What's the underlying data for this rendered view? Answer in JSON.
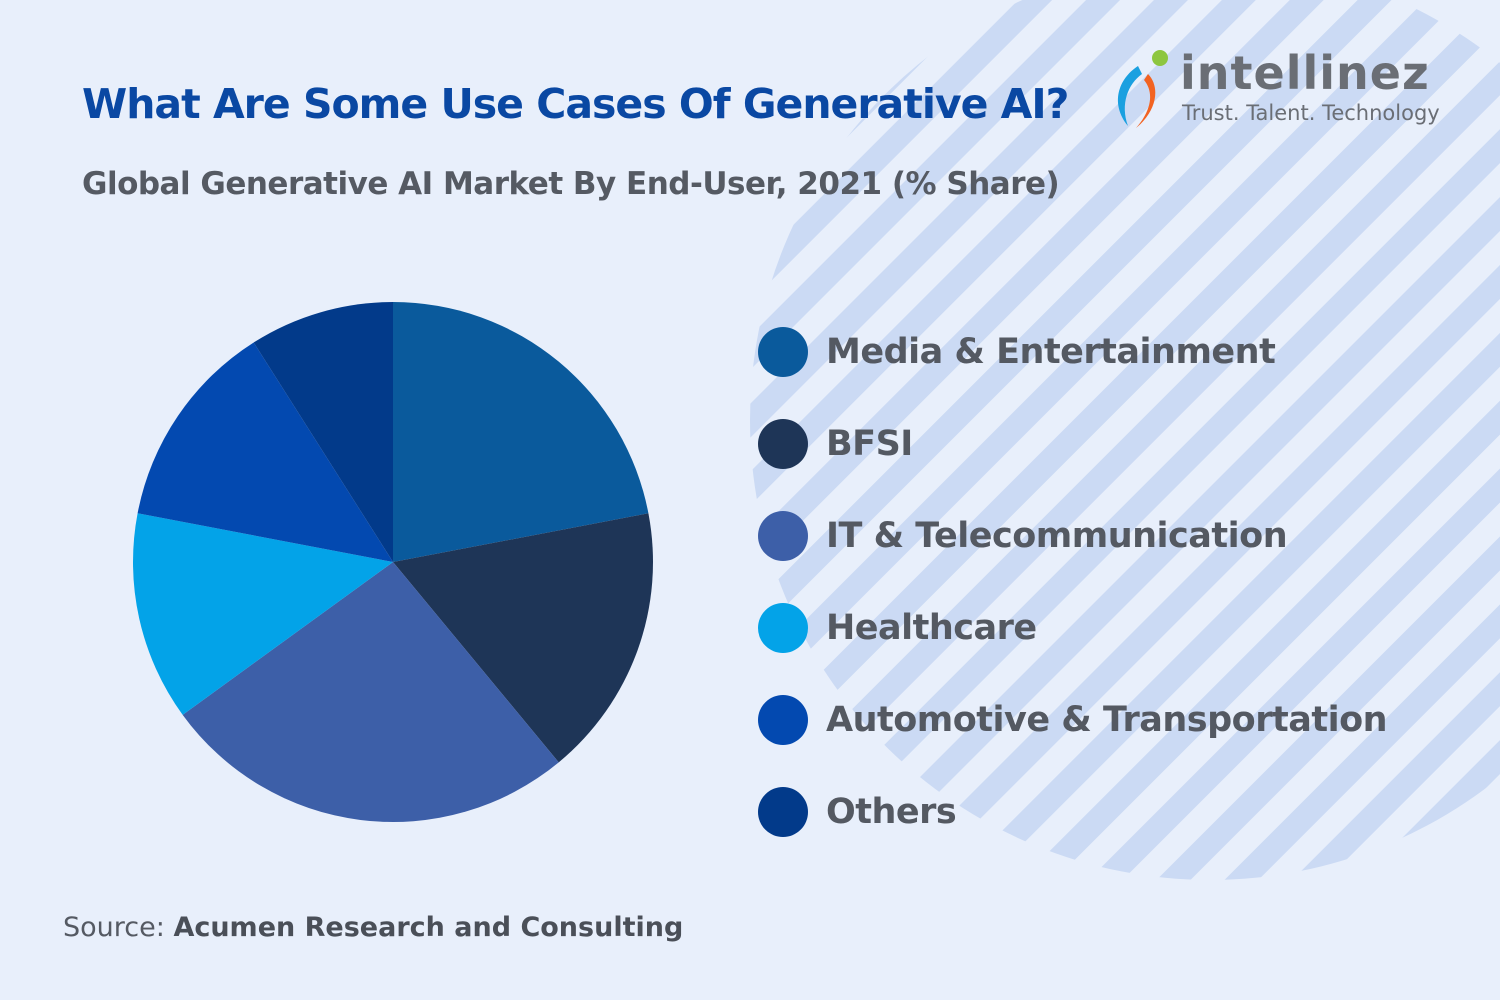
{
  "title": "What Are Some Use Cases Of Generative AI?",
  "logo": {
    "name": "intellinez",
    "tagline": "Trust. Talent. Technology"
  },
  "source": {
    "prefix": "Source:",
    "name": "Acumen Research and Consulting"
  },
  "chart_data": {
    "type": "pie",
    "title": "Global Generative AI Market By End-User, 2021 (% Share)",
    "categories": [
      "Media & Entertainment",
      "BFSI",
      "IT & Telecommunication",
      "Healthcare",
      "Automotive & Transportation",
      "Others"
    ],
    "values": [
      22,
      17,
      26,
      13,
      13,
      9
    ],
    "colors": [
      "#0a5a9c",
      "#1e3557",
      "#3d5fa8",
      "#03a3e8",
      "#0349b0",
      "#023a8a"
    ],
    "legend": "right",
    "data_labels": false
  }
}
